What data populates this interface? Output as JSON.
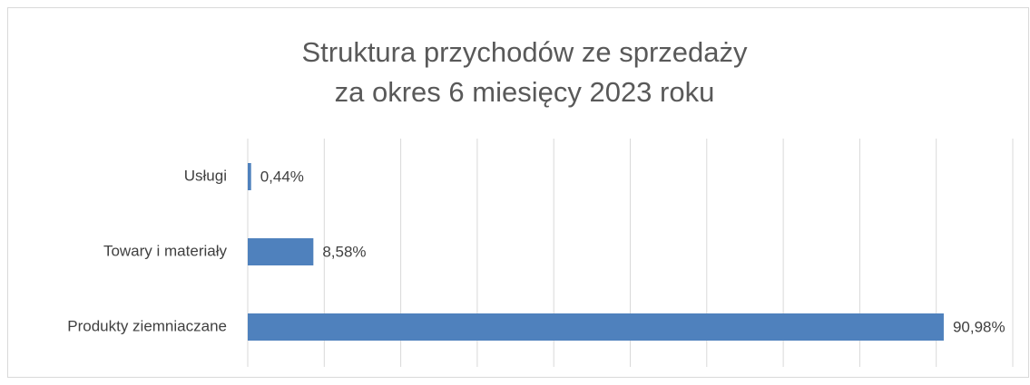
{
  "chart_data": {
    "type": "hbar",
    "title": [
      "Struktura przychodów ze sprzedaży",
      "za okres 6 miesięcy 2023 roku"
    ],
    "categories": [
      "Usługi",
      "Towary i materiały",
      "Produkty ziemniaczane"
    ],
    "values": [
      0.44,
      8.58,
      90.98
    ],
    "value_labels": [
      "0,44%",
      "8,58%",
      "90,98%"
    ],
    "color": "#4f81bd",
    "xlim": [
      0,
      100
    ],
    "xticks": [
      0,
      10,
      20,
      30,
      40,
      50,
      60,
      70,
      80,
      90,
      100
    ],
    "grid": true
  }
}
